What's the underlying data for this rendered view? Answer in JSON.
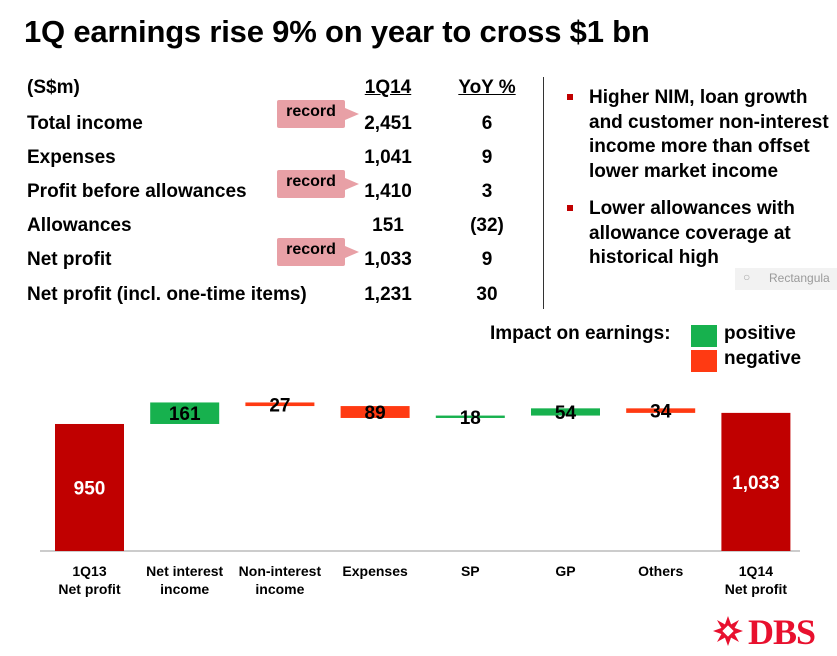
{
  "title": "1Q earnings rise 9% on year to cross $1 bn",
  "table": {
    "unit_header": "(S$m)",
    "col_headers": [
      "1Q14",
      "YoY %"
    ],
    "rows": [
      {
        "label": "Total income",
        "value": "2,451",
        "yoy": "6",
        "record": true
      },
      {
        "label": "Expenses",
        "value": "1,041",
        "yoy": "9",
        "record": false
      },
      {
        "label": "Profit before allowances",
        "value": "1,410",
        "yoy": "3",
        "record": true
      },
      {
        "label": "Allowances",
        "value": "151",
        "yoy": "(32)",
        "record": false
      },
      {
        "label": "Net profit",
        "value": "1,033",
        "yoy": "9",
        "record": true
      },
      {
        "label": "Net profit (incl. one-time items)",
        "value": "1,231",
        "yoy": "30",
        "record": false
      }
    ],
    "record_label": "record"
  },
  "bullets": [
    "Higher NIM, loan growth and customer non-interest income more than offset lower market income",
    "Lower allowances with allowance coverage at historical high"
  ],
  "ghost_label": "Rectangula",
  "legend": {
    "title": "Impact on earnings:",
    "positive": {
      "label": "positive",
      "color": "#17b14e"
    },
    "negative": {
      "label": "negative",
      "color": "#ff3a12"
    }
  },
  "colors": {
    "total": "#c00000",
    "positive": "#17b14e",
    "negative": "#ff3a12",
    "accent": "#c00000"
  },
  "chart_data": {
    "type": "bar",
    "subtype": "waterfall",
    "unit": "S$m",
    "categories": [
      [
        "1Q13",
        "Net profit"
      ],
      [
        "Net interest",
        "income"
      ],
      [
        "Non-interest",
        "income"
      ],
      [
        "Expenses"
      ],
      [
        "SP"
      ],
      [
        "GP"
      ],
      [
        "Others"
      ],
      [
        "1Q14",
        "Net profit"
      ]
    ],
    "items": [
      {
        "kind": "total",
        "value": 950,
        "label": "950"
      },
      {
        "kind": "positive",
        "value": 161,
        "label": "161"
      },
      {
        "kind": "negative",
        "value": 27,
        "label": "27"
      },
      {
        "kind": "negative",
        "value": 89,
        "label": "89"
      },
      {
        "kind": "positive",
        "value": 18,
        "label": "18"
      },
      {
        "kind": "positive",
        "value": 54,
        "label": "54"
      },
      {
        "kind": "negative",
        "value": 34,
        "label": "34"
      },
      {
        "kind": "total",
        "value": 1033,
        "label": "1,033"
      }
    ],
    "legend": "right",
    "grid": false
  },
  "logo": {
    "text": "DBS"
  }
}
